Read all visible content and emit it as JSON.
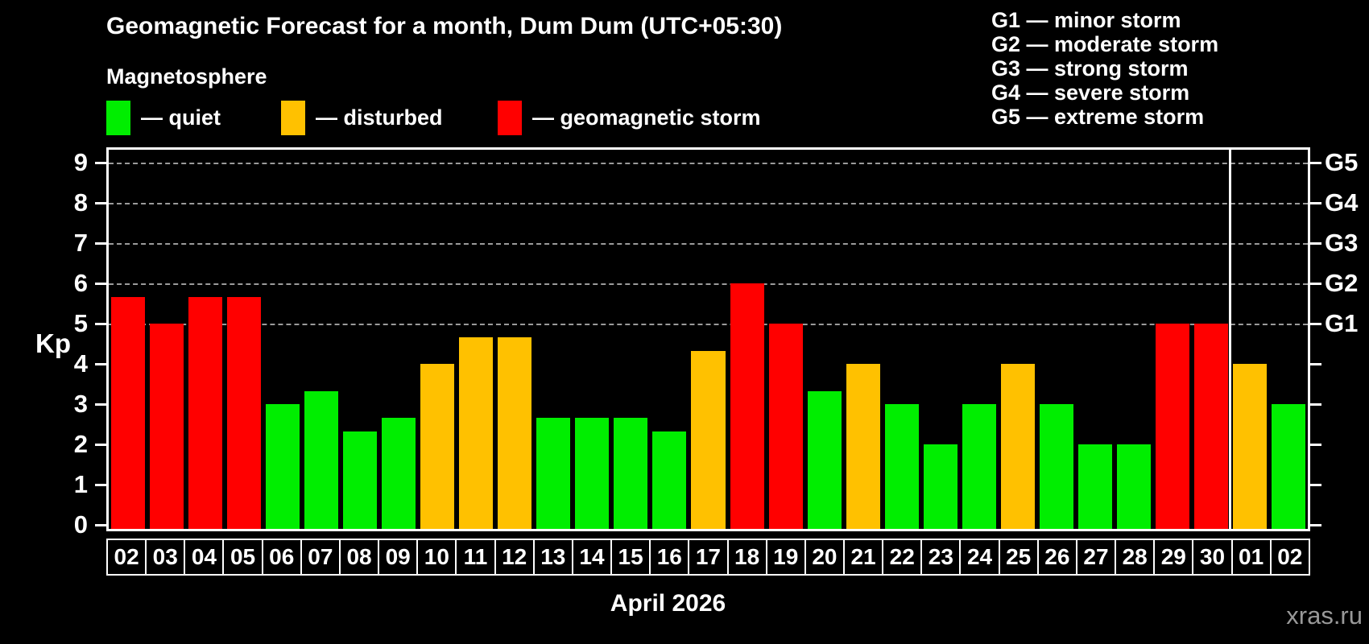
{
  "title": "Geomagnetic Forecast for a month, Dum Dum (UTC+05:30)",
  "subtitle": "Magnetosphere",
  "colors": {
    "quiet": "#00ee00",
    "disturbed": "#ffc100",
    "storm": "#ff0000",
    "background": "#000000",
    "axis": "#ffffff",
    "gridline": "#9b9b9b",
    "watermark_color": "#999999"
  },
  "legend": [
    {
      "key": "quiet",
      "label": "— quiet"
    },
    {
      "key": "disturbed",
      "label": "— disturbed"
    },
    {
      "key": "storm",
      "label": "— geomagnetic storm"
    }
  ],
  "g_scale_legend": [
    "G1 — minor storm",
    "G2 — moderate storm",
    "G3 — strong storm",
    "G4 — severe storm",
    "G5 — extreme storm"
  ],
  "watermark": "xras.ru",
  "chart_data": {
    "type": "bar",
    "title": "Geomagnetic Forecast for a month, Dum Dum (UTC+05:30)",
    "subtitle": "Magnetosphere",
    "xlabel": "April 2026",
    "ylabel": "Kp",
    "ylim": [
      0,
      9
    ],
    "yticks": [
      0,
      1,
      2,
      3,
      4,
      5,
      6,
      7,
      8,
      9
    ],
    "grid": "dashed horizontal lines at Kp 5-9 (G1-G5 levels)",
    "legend_position": "top-left",
    "categories": [
      "02",
      "03",
      "04",
      "05",
      "06",
      "07",
      "08",
      "09",
      "10",
      "11",
      "12",
      "13",
      "14",
      "15",
      "16",
      "17",
      "18",
      "19",
      "20",
      "21",
      "22",
      "23",
      "24",
      "25",
      "26",
      "27",
      "28",
      "29",
      "30",
      "01",
      "02"
    ],
    "values": [
      5.67,
      5,
      5.67,
      5.67,
      3,
      3.33,
      2.33,
      2.67,
      4,
      4.67,
      4.67,
      2.67,
      2.67,
      2.67,
      2.33,
      4.33,
      6,
      5,
      3.33,
      4,
      3,
      2,
      3,
      4,
      3,
      2,
      2,
      5,
      5,
      4,
      3
    ],
    "statuses": [
      "storm",
      "storm",
      "storm",
      "storm",
      "quiet",
      "quiet",
      "quiet",
      "quiet",
      "disturbed",
      "disturbed",
      "disturbed",
      "quiet",
      "quiet",
      "quiet",
      "quiet",
      "disturbed",
      "storm",
      "storm",
      "quiet",
      "disturbed",
      "quiet",
      "quiet",
      "quiet",
      "disturbed",
      "quiet",
      "quiet",
      "quiet",
      "storm",
      "storm",
      "disturbed",
      "quiet"
    ],
    "month_separator_index": 29,
    "g_levels": [
      {
        "label": "G1",
        "kp": 5
      },
      {
        "label": "G2",
        "kp": 6
      },
      {
        "label": "G3",
        "kp": 7
      },
      {
        "label": "G4",
        "kp": 8
      },
      {
        "label": "G5",
        "kp": 9
      }
    ]
  }
}
